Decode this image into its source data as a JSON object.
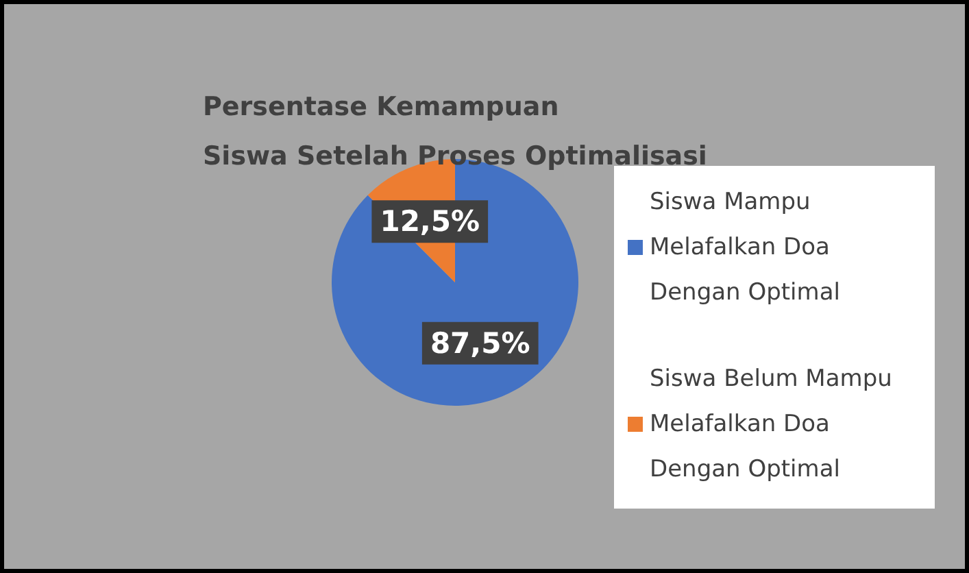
{
  "chart_data": {
    "type": "pie",
    "title": "Persentase Kemampuan\nSiswa Setelah Proses Optimalisasi",
    "categories": [
      "Siswa Mampu Melafalkan Doa Dengan Optimal",
      "Siswa Belum Mampu Melafalkan Doa Dengan Optimal"
    ],
    "values": [
      87.5,
      12.5
    ],
    "colors": [
      "#4472c4",
      "#ed7d31"
    ],
    "value_labels": [
      "87,5%",
      "12,5%"
    ],
    "legend": "right"
  }
}
